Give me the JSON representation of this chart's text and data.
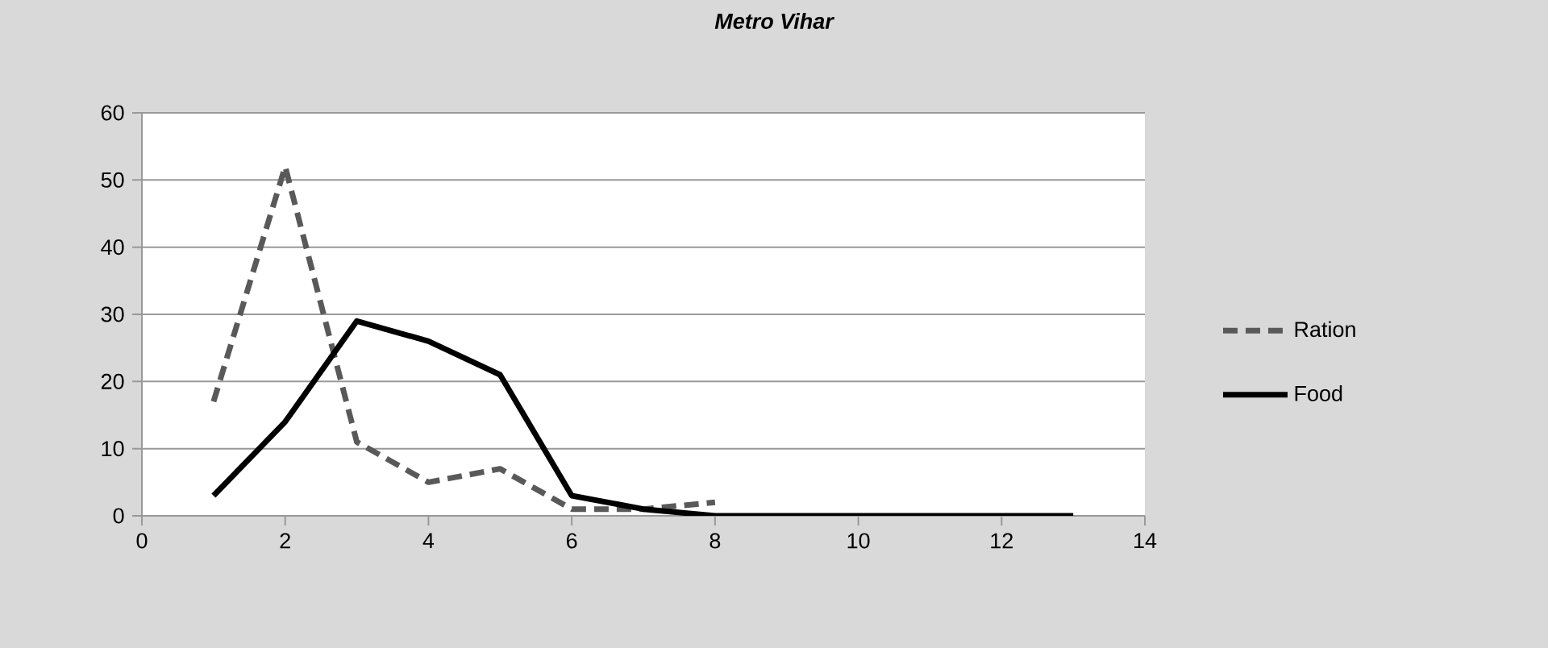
{
  "chart_data": {
    "type": "line",
    "title": "Metro Vihar",
    "x": [
      1,
      2,
      3,
      4,
      5,
      6,
      7,
      8,
      9,
      10,
      11,
      12,
      13
    ],
    "series": [
      {
        "name": "Ration",
        "color": "#595959",
        "line_style": "dashed",
        "x": [
          1,
          2,
          3,
          4,
          5,
          6,
          7,
          8
        ],
        "values": [
          17,
          52,
          11,
          5,
          7,
          1,
          1,
          2
        ]
      },
      {
        "name": "Food",
        "color": "#000000",
        "line_style": "solid",
        "values": [
          3,
          14,
          29,
          26,
          21,
          3,
          1,
          0,
          0,
          0,
          0,
          0,
          0
        ]
      }
    ],
    "xlim": [
      0,
      14
    ],
    "xticks": [
      0,
      2,
      4,
      6,
      8,
      10,
      12,
      14
    ],
    "ylim": [
      0,
      60
    ],
    "yticks": [
      0,
      10,
      20,
      30,
      40,
      50,
      60
    ],
    "grid": "y",
    "legend": "right",
    "marker": "none"
  }
}
